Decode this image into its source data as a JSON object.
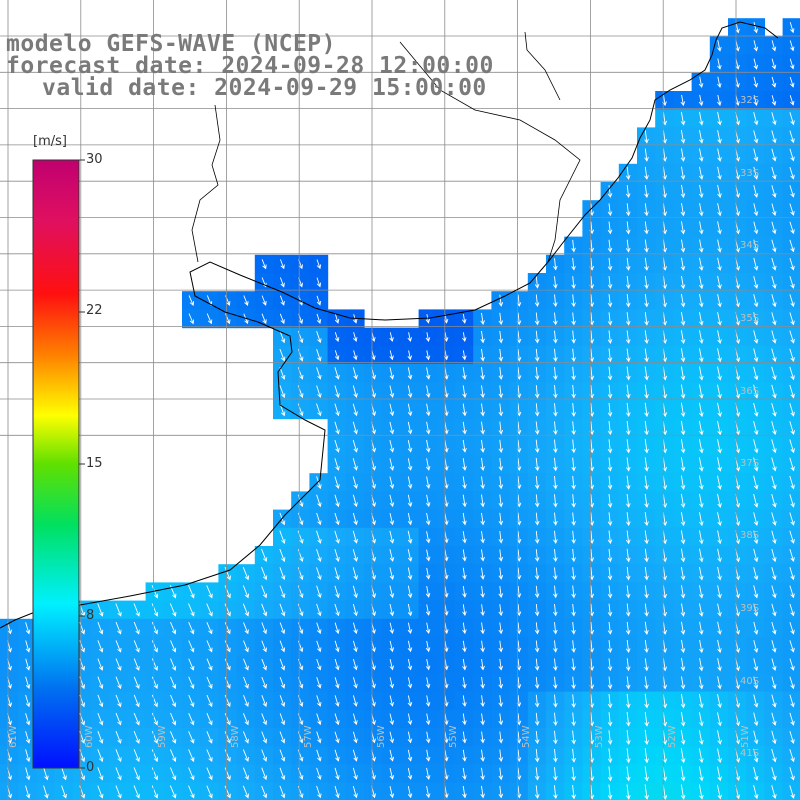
{
  "title": {
    "line1": "modelo GEFS-WAVE (NCEP)",
    "line2": "forecast date: 2024-09-28 12:00:00",
    "line3": "valid date: 2024-09-29 15:00:00"
  },
  "colorbar": {
    "unit": "[m/s]",
    "ticks": [
      "30",
      "22",
      "15",
      "8",
      "0"
    ]
  },
  "grid": {
    "lat_labels": [
      "32S",
      "33S",
      "34S",
      "35S",
      "36S",
      "37S",
      "38S",
      "39S",
      "40S",
      "41S"
    ],
    "lon_labels": [
      "61W",
      "60W",
      "59W",
      "58W",
      "57W",
      "56W",
      "55W",
      "54W",
      "53W",
      "52W",
      "51W"
    ]
  },
  "colors": {
    "land": "#ffffff",
    "grid": "#8c8c8c",
    "arrow": "#ffffff",
    "title_text": "#7a7a7a"
  }
}
